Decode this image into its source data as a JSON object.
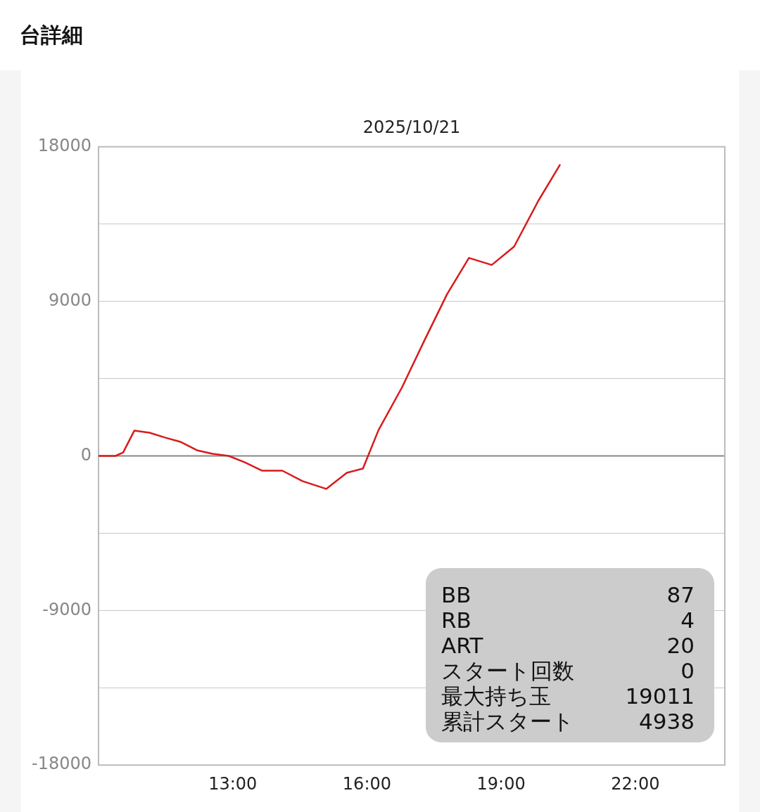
{
  "chart_data": {
    "type": "line",
    "title": "台詳細",
    "subtitle": "2025/10/21",
    "x": [
      10,
      10.38,
      10.55,
      10.8,
      11.14,
      11.5,
      11.83,
      12.2,
      12.55,
      12.91,
      13.27,
      13.66,
      14.11,
      14.56,
      15.09,
      15.55,
      15.91,
      16.26,
      16.78,
      17.29,
      17.79,
      18.28,
      18.79,
      19.29,
      19.83,
      20.32
    ],
    "series": [
      {
        "color": "#d81b1b",
        "values": [
          0,
          0,
          200,
          1470,
          1350,
          1060,
          820,
          330,
          120,
          0,
          -370,
          -860,
          -860,
          -1470,
          -1920,
          -980,
          -740,
          1510,
          3970,
          6750,
          9410,
          11530,
          11120,
          12190,
          14850,
          16970
        ]
      }
    ],
    "xlim": [
      10,
      24
    ],
    "xticks": [
      {
        "value": 13,
        "label": "13:00"
      },
      {
        "value": 16,
        "label": "16:00"
      },
      {
        "value": 19,
        "label": "19:00"
      },
      {
        "value": 22,
        "label": "22:00"
      }
    ],
    "ylim": [
      -18000,
      18000
    ],
    "yticks": [
      -18000,
      {
        "value": -13500,
        "label": null
      },
      -9000,
      {
        "value": -4500,
        "label": null
      },
      0,
      {
        "value": 4500,
        "label": null
      },
      9000,
      {
        "value": 13500,
        "label": null
      },
      18000
    ],
    "grid": "y",
    "legend": false,
    "marker": "none",
    "line_style": "solid",
    "ref_lines": [
      {
        "axis": "y",
        "value": 0,
        "color": "#888888"
      }
    ],
    "annotations": [
      "BB 87",
      "RB 4",
      "ART 20",
      "スタート回数 0",
      "最大持ち玉 19011",
      "累計スタート 4938"
    ]
  }
}
